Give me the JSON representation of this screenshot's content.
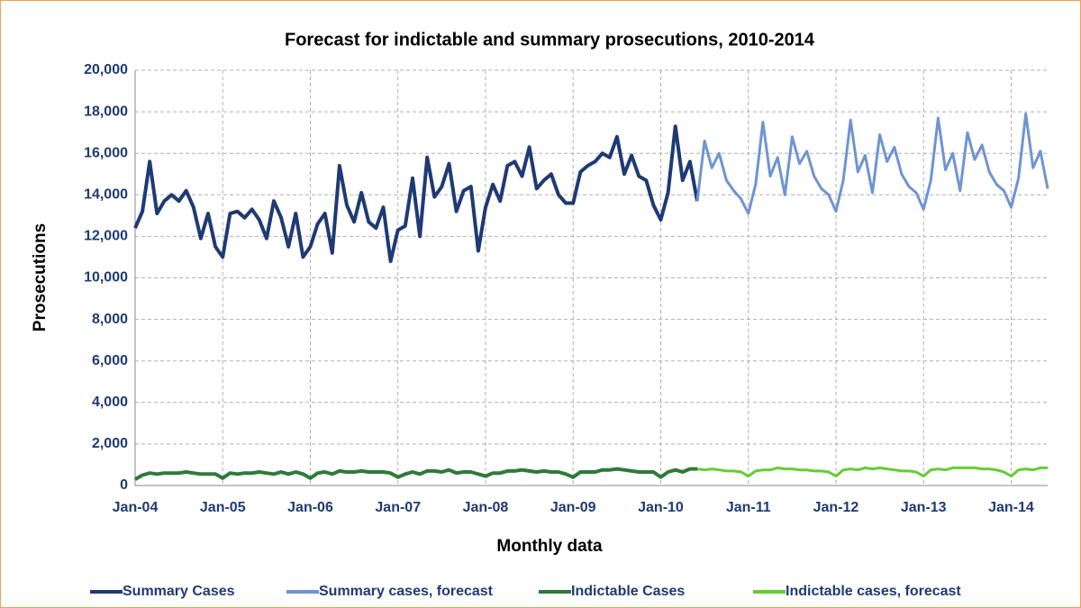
{
  "chart_data": {
    "type": "line",
    "title": "Forecast for indictable and summary prosecutions, 2010-2014",
    "x_label": "Monthly data",
    "y_label": "Prosecutions",
    "categories": [
      "Jan-04",
      null,
      null,
      null,
      null,
      null,
      null,
      null,
      null,
      null,
      null,
      null,
      "Jan-05",
      null,
      null,
      null,
      null,
      null,
      null,
      null,
      null,
      null,
      null,
      null,
      "Jan-06",
      null,
      null,
      null,
      null,
      null,
      null,
      null,
      null,
      null,
      null,
      null,
      "Jan-07",
      null,
      null,
      null,
      null,
      null,
      null,
      null,
      null,
      null,
      null,
      null,
      "Jan-08",
      null,
      null,
      null,
      null,
      null,
      null,
      null,
      null,
      null,
      null,
      null,
      "Jan-09",
      null,
      null,
      null,
      null,
      null,
      null,
      null,
      null,
      null,
      null,
      null,
      "Jan-10",
      null,
      null,
      null,
      null,
      null,
      null,
      null,
      null,
      null,
      null,
      null,
      "Jan-11",
      null,
      null,
      null,
      null,
      null,
      null,
      null,
      null,
      null,
      null,
      null,
      "Jan-12",
      null,
      null,
      null,
      null,
      null,
      null,
      null,
      null,
      null,
      null,
      null,
      "Jan-13",
      null,
      null,
      null,
      null,
      null,
      null,
      null,
      null,
      null,
      null,
      null,
      "Jan-14",
      null,
      null,
      null,
      null,
      null
    ],
    "ylim": [
      0,
      20000
    ],
    "yticks": [
      0,
      {
        "value": 2000,
        "label": "2,000"
      },
      {
        "value": 4000,
        "label": "4,000"
      },
      {
        "value": 6000,
        "label": "6,000"
      },
      {
        "value": 8000,
        "label": "8,000"
      },
      {
        "value": 10000,
        "label": "10,000"
      },
      {
        "value": 12000,
        "label": "12,000"
      },
      {
        "value": 14000,
        "label": "14,000"
      },
      {
        "value": 16000,
        "label": "16,000"
      },
      {
        "value": 18000,
        "label": "18,000"
      },
      {
        "value": 20000,
        "label": "20,000"
      }
    ],
    "grid": true,
    "legend": "bottom",
    "series": [
      {
        "name": "Summary Cases",
        "color": "#1f3a73",
        "values": [
          12400,
          13200,
          15600,
          13100,
          13700,
          14000,
          13700,
          14200,
          13400,
          11900,
          13100,
          11500,
          11000,
          13100,
          13200,
          12900,
          13300,
          12800,
          11900,
          13700,
          12900,
          11500,
          13100,
          11000,
          11500,
          12600,
          13100,
          11200,
          15400,
          13500,
          12700,
          14100,
          12700,
          12400,
          13400,
          10800,
          12300,
          12500,
          14800,
          12000,
          15800,
          13900,
          14400,
          15500,
          13200,
          14200,
          14400,
          11300,
          13400,
          14500,
          13700,
          15400,
          15600,
          14900,
          16300,
          14300,
          14700,
          15000,
          14000,
          13600,
          13600,
          15100,
          15400,
          15600,
          16000,
          15800,
          16800,
          15000,
          15900,
          14900,
          14700,
          13500,
          12800,
          14100,
          17300,
          14700,
          15600,
          13700,
          null,
          null,
          null,
          null,
          null,
          null,
          null,
          null,
          null,
          null,
          null,
          null,
          null,
          null,
          null,
          null,
          null,
          null,
          null,
          null,
          null,
          null,
          null,
          null,
          null,
          null,
          null,
          null,
          null,
          null,
          null,
          null,
          null,
          null,
          null,
          null,
          null,
          null,
          null,
          null,
          null,
          null,
          null,
          null,
          null,
          null,
          null,
          null
        ]
      },
      {
        "name": "Summary cases, forecast",
        "color": "#6f94d2",
        "values": [
          null,
          null,
          null,
          null,
          null,
          null,
          null,
          null,
          null,
          null,
          null,
          null,
          null,
          null,
          null,
          null,
          null,
          null,
          null,
          null,
          null,
          null,
          null,
          null,
          null,
          null,
          null,
          null,
          null,
          null,
          null,
          null,
          null,
          null,
          null,
          null,
          null,
          null,
          null,
          null,
          null,
          null,
          null,
          null,
          null,
          null,
          null,
          null,
          null,
          null,
          null,
          null,
          null,
          null,
          null,
          null,
          null,
          null,
          null,
          null,
          null,
          null,
          null,
          null,
          null,
          null,
          null,
          null,
          null,
          null,
          null,
          null,
          null,
          null,
          null,
          null,
          null,
          13700,
          16600,
          15300,
          16000,
          14700,
          14200,
          13800,
          13100,
          14500,
          17500,
          14900,
          15800,
          14000,
          16800,
          15500,
          16100,
          14900,
          14300,
          14000,
          13200,
          14700,
          17600,
          15100,
          15900,
          14100,
          16900,
          15600,
          16300,
          15000,
          14400,
          14100,
          13300,
          14700,
          17700,
          15200,
          16000,
          14200,
          17000,
          15700,
          16400,
          15100,
          14500,
          14200,
          13400,
          14800,
          17900,
          15300,
          16100,
          14300
        ]
      },
      {
        "name": "Indictable Cases",
        "color": "#2e7a3a",
        "values": [
          300,
          500,
          600,
          550,
          600,
          600,
          600,
          650,
          600,
          550,
          550,
          550,
          350,
          600,
          550,
          600,
          600,
          650,
          600,
          550,
          650,
          550,
          650,
          550,
          350,
          600,
          650,
          550,
          700,
          650,
          650,
          700,
          650,
          650,
          650,
          600,
          400,
          550,
          650,
          550,
          700,
          700,
          650,
          750,
          600,
          650,
          650,
          550,
          450,
          600,
          600,
          700,
          700,
          750,
          700,
          650,
          700,
          650,
          650,
          550,
          400,
          650,
          650,
          650,
          750,
          750,
          800,
          750,
          700,
          650,
          650,
          650,
          400,
          650,
          750,
          650,
          800,
          800,
          null,
          null,
          null,
          null,
          null,
          null,
          null,
          null,
          null,
          null,
          null,
          null,
          null,
          null,
          null,
          null,
          null,
          null,
          null,
          null,
          null,
          null,
          null,
          null,
          null,
          null,
          null,
          null,
          null,
          null,
          null,
          null,
          null,
          null,
          null,
          null,
          null,
          null,
          null,
          null,
          null,
          null,
          null,
          null,
          null,
          null,
          null,
          null
        ]
      },
      {
        "name": "Indictable cases, forecast",
        "color": "#66cc33",
        "values": [
          null,
          null,
          null,
          null,
          null,
          null,
          null,
          null,
          null,
          null,
          null,
          null,
          null,
          null,
          null,
          null,
          null,
          null,
          null,
          null,
          null,
          null,
          null,
          null,
          null,
          null,
          null,
          null,
          null,
          null,
          null,
          null,
          null,
          null,
          null,
          null,
          null,
          null,
          null,
          null,
          null,
          null,
          null,
          null,
          null,
          null,
          null,
          null,
          null,
          null,
          null,
          null,
          null,
          null,
          null,
          null,
          null,
          null,
          null,
          null,
          null,
          null,
          null,
          null,
          null,
          null,
          null,
          null,
          null,
          null,
          null,
          null,
          null,
          null,
          null,
          null,
          null,
          800,
          750,
          800,
          750,
          700,
          700,
          650,
          450,
          700,
          750,
          750,
          850,
          800,
          800,
          750,
          750,
          700,
          700,
          650,
          450,
          750,
          800,
          750,
          850,
          800,
          850,
          800,
          750,
          700,
          700,
          650,
          450,
          750,
          800,
          750,
          850,
          850,
          850,
          850,
          800,
          800,
          750,
          650,
          450,
          750,
          800,
          750,
          850,
          850
        ]
      }
    ]
  }
}
